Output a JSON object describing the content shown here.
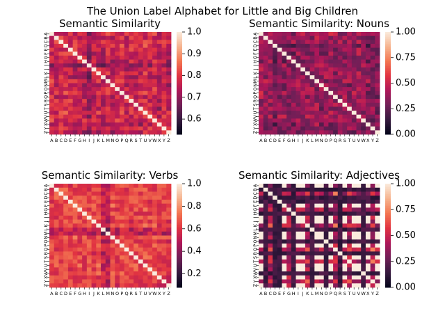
{
  "figure": {
    "suptitle": "The Union Label Alphabet for Little and Big Children"
  },
  "colormap": {
    "name": "rocket",
    "stops": [
      "#03051a",
      "#36193e",
      "#701f57",
      "#ae1759",
      "#e13342",
      "#f37651",
      "#f6b48f",
      "#faebdd"
    ]
  },
  "chart_data": [
    {
      "type": "heatmap",
      "title": "Semantic Similarity",
      "x_labels": [
        "A",
        "B",
        "C",
        "D",
        "E",
        "F",
        "G",
        "H",
        "I",
        "J",
        "K",
        "L",
        "M",
        "N",
        "O",
        "P",
        "Q",
        "R",
        "S",
        "T",
        "U",
        "V",
        "W",
        "X",
        "Y",
        "Z"
      ],
      "y_labels": [
        "A",
        "B",
        "C",
        "D",
        "E",
        "F",
        "G",
        "H",
        "I",
        "J",
        "K",
        "L",
        "M",
        "N",
        "O",
        "P",
        "Q",
        "R",
        "S",
        "T",
        "U",
        "V",
        "W",
        "X",
        "Y",
        "Z"
      ],
      "vmin": 0.53,
      "vmax": 1.0,
      "colorbar_ticks": [
        0.6,
        0.7,
        0.8,
        0.9,
        1.0
      ],
      "colorbar_tick_labels": [
        "0.6",
        "0.7",
        "0.8",
        "0.9",
        "1.0"
      ],
      "diagonal": 1.0,
      "row_means": [
        0.78,
        0.76,
        0.8,
        0.79,
        0.77,
        0.78,
        0.75,
        0.74,
        0.64,
        0.73,
        0.77,
        0.72,
        0.79,
        0.74,
        0.77,
        0.8,
        0.75,
        0.78,
        0.77,
        0.74,
        0.8,
        0.75,
        0.79,
        0.72,
        0.8,
        0.72
      ],
      "spread": 0.06
    },
    {
      "type": "heatmap",
      "title": "Semantic Similarity: Nouns",
      "x_labels": [
        "A",
        "B",
        "C",
        "D",
        "E",
        "F",
        "G",
        "H",
        "I",
        "J",
        "K",
        "L",
        "M",
        "N",
        "O",
        "P",
        "Q",
        "R",
        "S",
        "T",
        "U",
        "V",
        "W",
        "X",
        "Y",
        "Z"
      ],
      "y_labels": [
        "A",
        "B",
        "C",
        "D",
        "E",
        "F",
        "G",
        "H",
        "I",
        "J",
        "K",
        "L",
        "M",
        "N",
        "O",
        "P",
        "Q",
        "R",
        "S",
        "T",
        "U",
        "V",
        "W",
        "X",
        "Y",
        "Z"
      ],
      "vmin": 0.0,
      "vmax": 1.0,
      "colorbar_ticks": [
        0.0,
        0.25,
        0.5,
        0.75,
        1.0
      ],
      "colorbar_tick_labels": [
        "0.00",
        "0.25",
        "0.50",
        "0.75",
        "1.00"
      ],
      "diagonal": 1.0,
      "row_means": [
        0.45,
        0.4,
        0.42,
        0.25,
        0.38,
        0.35,
        0.32,
        0.3,
        0.4,
        0.34,
        0.36,
        0.37,
        0.41,
        0.33,
        0.35,
        0.4,
        0.36,
        0.34,
        0.38,
        0.33,
        0.39,
        0.42,
        0.36,
        0.3,
        0.32,
        0.28
      ],
      "spread": 0.14
    },
    {
      "type": "heatmap",
      "title": "Semantic Similarity: Verbs",
      "x_labels": [
        "A",
        "B",
        "C",
        "D",
        "E",
        "F",
        "G",
        "H",
        "I",
        "J",
        "K",
        "L",
        "M",
        "N",
        "O",
        "P",
        "Q",
        "R",
        "S",
        "T",
        "U",
        "V",
        "W",
        "X",
        "Y",
        "Z"
      ],
      "y_labels": [
        "A",
        "B",
        "C",
        "D",
        "E",
        "F",
        "G",
        "H",
        "I",
        "J",
        "K",
        "L",
        "M",
        "N",
        "O",
        "P",
        "Q",
        "R",
        "S",
        "T",
        "U",
        "V",
        "W",
        "X",
        "Y",
        "Z"
      ],
      "vmin": 0.08,
      "vmax": 1.0,
      "colorbar_ticks": [
        0.2,
        0.4,
        0.6,
        0.8,
        1.0
      ],
      "colorbar_tick_labels": [
        "0.2",
        "0.4",
        "0.6",
        "0.8",
        "1.0"
      ],
      "diagonal": 1.0,
      "row_means": [
        0.62,
        0.6,
        0.66,
        0.7,
        0.62,
        0.68,
        0.65,
        0.6,
        0.64,
        0.58,
        0.66,
        0.4,
        0.38,
        0.68,
        0.62,
        0.66,
        0.64,
        0.6,
        0.65,
        0.64,
        0.66,
        0.62,
        0.66,
        0.6,
        0.62,
        0.58
      ],
      "spread": 0.1
    },
    {
      "type": "heatmap",
      "title": "Semantic Similarity: Adjectives",
      "x_labels": [
        "A",
        "B",
        "C",
        "D",
        "E",
        "F",
        "G",
        "H",
        "I",
        "J",
        "K",
        "L",
        "M",
        "N",
        "O",
        "P",
        "Q",
        "R",
        "S",
        "T",
        "U",
        "V",
        "W",
        "X",
        "Y",
        "Z"
      ],
      "y_labels": [
        "A",
        "B",
        "C",
        "D",
        "E",
        "F",
        "G",
        "H",
        "I",
        "J",
        "K",
        "L",
        "M",
        "N",
        "O",
        "P",
        "Q",
        "R",
        "S",
        "T",
        "U",
        "V",
        "W",
        "X",
        "Y",
        "Z"
      ],
      "vmin": 0.0,
      "vmax": 1.0,
      "colorbar_ticks": [
        0.0,
        0.25,
        0.5,
        0.75,
        1.0
      ],
      "colorbar_tick_labels": [
        "0.00",
        "0.25",
        "0.50",
        "0.75",
        "1.00"
      ],
      "diagonal": 1.0,
      "group_values": [
        1.0,
        0.1,
        0.55,
        0.3
      ],
      "letter_groups": [
        0,
        1,
        2,
        1,
        1,
        0,
        3,
        1,
        0,
        0,
        2,
        1,
        0,
        0,
        1,
        0,
        2,
        1,
        0,
        2,
        0,
        0,
        1,
        0,
        2,
        0
      ]
    }
  ]
}
